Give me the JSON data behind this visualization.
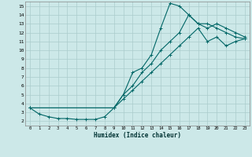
{
  "xlabel": "Humidex (Indice chaleur)",
  "bg_color": "#cce8e8",
  "grid_color": "#aacccc",
  "line_color": "#006666",
  "xlim": [
    -0.5,
    23.5
  ],
  "ylim": [
    1.5,
    15.5
  ],
  "xticks": [
    0,
    1,
    2,
    3,
    4,
    5,
    6,
    7,
    8,
    9,
    10,
    11,
    12,
    13,
    14,
    15,
    16,
    17,
    18,
    19,
    20,
    21,
    22,
    23
  ],
  "yticks": [
    2,
    3,
    4,
    5,
    6,
    7,
    8,
    9,
    10,
    11,
    12,
    13,
    14,
    15
  ],
  "line1_x": [
    0,
    1,
    2,
    3,
    4,
    5,
    6,
    7,
    8,
    9,
    10,
    11,
    12,
    13,
    14,
    15,
    16,
    17,
    18,
    19,
    20,
    21,
    22,
    23
  ],
  "line1_y": [
    3.5,
    2.8,
    2.5,
    2.3,
    2.3,
    2.2,
    2.2,
    2.2,
    2.5,
    3.5,
    5.0,
    7.5,
    8.0,
    9.5,
    12.5,
    15.3,
    15.0,
    14.0,
    13.0,
    13.0,
    12.5,
    12.0,
    11.5,
    11.3
  ],
  "line2_x": [
    0,
    9,
    10,
    11,
    12,
    13,
    14,
    15,
    16,
    17,
    18,
    19,
    20,
    21,
    22,
    23
  ],
  "line2_y": [
    3.5,
    3.5,
    5.0,
    6.0,
    7.5,
    8.5,
    10.0,
    11.0,
    12.0,
    14.0,
    13.0,
    12.5,
    13.0,
    12.5,
    12.0,
    11.5
  ],
  "line3_x": [
    0,
    9,
    10,
    11,
    12,
    13,
    14,
    15,
    16,
    17,
    18,
    19,
    20,
    21,
    22,
    23
  ],
  "line3_y": [
    3.5,
    3.5,
    4.5,
    5.5,
    6.5,
    7.5,
    8.5,
    9.5,
    10.5,
    11.5,
    12.5,
    11.0,
    11.5,
    10.5,
    11.0,
    11.3
  ]
}
